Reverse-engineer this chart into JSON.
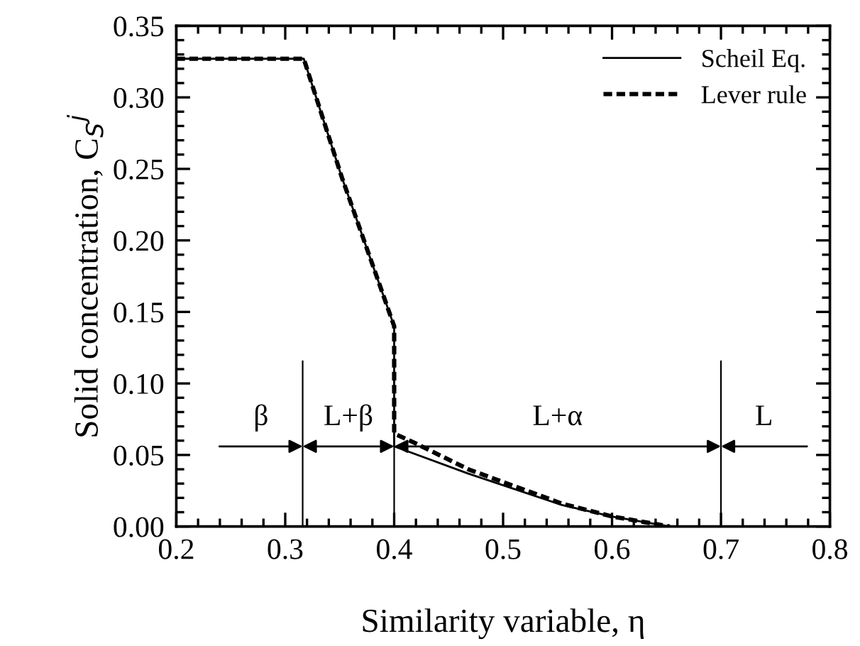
{
  "chart_data": {
    "type": "line",
    "xlabel": "Similarity variable, η",
    "ylabel": "Solid concentration, C$_{S}$$^{j}$",
    "xlim": [
      0.2,
      0.8
    ],
    "ylim": [
      0,
      0.35
    ],
    "xticks": [
      0.2,
      0.3,
      0.4,
      0.5,
      0.6,
      0.7,
      0.8
    ],
    "yticks": [
      {
        "value": 0,
        "label": "0.00"
      },
      0.05,
      {
        "value": 0.1,
        "label": "0.10"
      },
      0.15,
      {
        "value": 0.2,
        "label": "0.20"
      },
      0.25,
      {
        "value": 0.3,
        "label": "0.30"
      },
      0.35
    ],
    "series": [
      {
        "name": "Scheil Eq.",
        "color": "#000000",
        "line_style": "solid",
        "x": [
          0.2,
          0.317,
          0.352,
          0.4,
          0.4,
          0.468,
          0.554,
          0.6,
          0.653
        ],
        "values": [
          0.327,
          0.327,
          0.244,
          0.14,
          0.056,
          0.037,
          0.015,
          0.007,
          0
        ]
      },
      {
        "name": "Lever rule",
        "color": "#000000",
        "line_style": "dotted",
        "x": [
          0.2,
          0.317,
          0.352,
          0.4,
          0.4,
          0.42,
          0.468,
          0.554,
          0.6,
          0.653
        ],
        "values": [
          0.327,
          0.327,
          0.244,
          0.14,
          0.065,
          0.058,
          0.04,
          0.016,
          0.007,
          0
        ]
      }
    ],
    "ref_lines": [
      {
        "axis": "x",
        "value": 0.316,
        "label": null
      },
      {
        "axis": "x",
        "value": 0.4,
        "label": null
      },
      {
        "axis": "x",
        "value": 0.7,
        "label": null
      }
    ],
    "annotations": [
      "β",
      "L+β",
      "L+α",
      "L"
    ],
    "legend": "top right",
    "marker": "none"
  }
}
